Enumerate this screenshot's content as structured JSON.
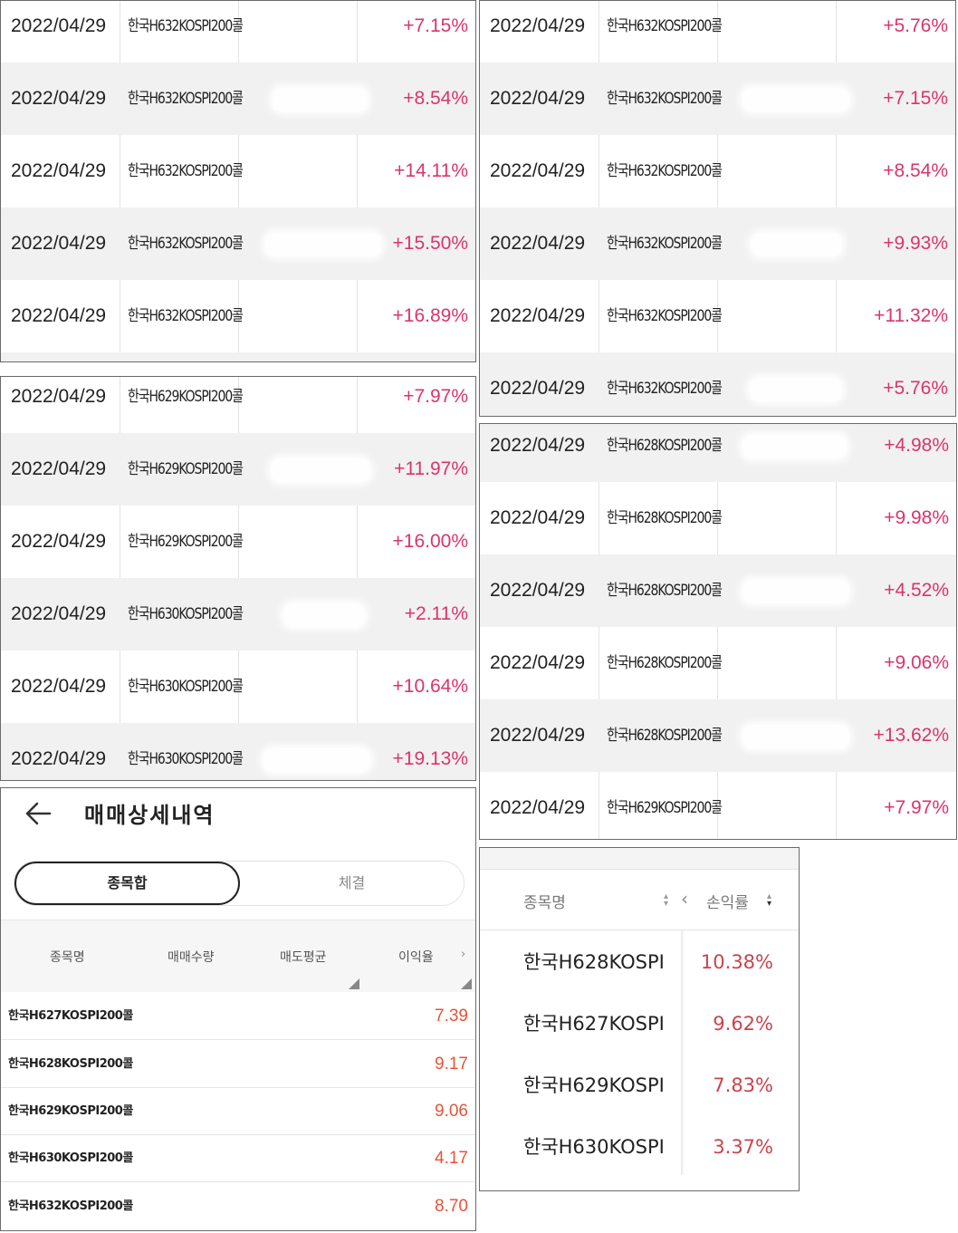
{
  "panel1": {
    "rows": [
      {
        "date": "2022/04/29",
        "name": "한국H632KOSPI200콜",
        "rate": "+7.15%"
      },
      {
        "date": "2022/04/29",
        "name": "한국H632KOSPI200콜",
        "rate": "+8.54%"
      },
      {
        "date": "2022/04/29",
        "name": "한국H632KOSPI200콜",
        "rate": "+14.11%"
      },
      {
        "date": "2022/04/29",
        "name": "한국H632KOSPI200콜",
        "rate": "+15.50%"
      },
      {
        "date": "2022/04/29",
        "name": "한국H632KOSPI200콜",
        "rate": "+16.89%"
      }
    ]
  },
  "panel2": {
    "rows": [
      {
        "date": "2022/04/29",
        "name": "한국H632KOSPI200콜",
        "rate": "+5.76%"
      },
      {
        "date": "2022/04/29",
        "name": "한국H632KOSPI200콜",
        "rate": "+7.15%"
      },
      {
        "date": "2022/04/29",
        "name": "한국H632KOSPI200콜",
        "rate": "+8.54%"
      },
      {
        "date": "2022/04/29",
        "name": "한국H632KOSPI200콜",
        "rate": "+9.93%"
      },
      {
        "date": "2022/04/29",
        "name": "한국H632KOSPI200콜",
        "rate": "+11.32%"
      },
      {
        "date": "2022/04/29",
        "name": "한국H632KOSPI200콜",
        "rate": "+5.76%"
      }
    ]
  },
  "panel3": {
    "rows": [
      {
        "date": "2022/04/29",
        "name": "한국H629KOSPI200콜",
        "rate": "+7.97%"
      },
      {
        "date": "2022/04/29",
        "name": "한국H629KOSPI200콜",
        "rate": "+11.97%"
      },
      {
        "date": "2022/04/29",
        "name": "한국H629KOSPI200콜",
        "rate": "+16.00%"
      },
      {
        "date": "2022/04/29",
        "name": "한국H630KOSPI200콜",
        "rate": "+2.11%"
      },
      {
        "date": "2022/04/29",
        "name": "한국H630KOSPI200콜",
        "rate": "+10.64%"
      },
      {
        "date": "2022/04/29",
        "name": "한국H630KOSPI200콜",
        "rate": "+19.13%"
      }
    ]
  },
  "panel4": {
    "rows": [
      {
        "date": "2022/04/29",
        "name": "한국H628KOSPI200콜",
        "rate": "+4.98%"
      },
      {
        "date": "2022/04/29",
        "name": "한국H628KOSPI200콜",
        "rate": "+9.98%"
      },
      {
        "date": "2022/04/29",
        "name": "한국H628KOSPI200콜",
        "rate": "+4.52%"
      },
      {
        "date": "2022/04/29",
        "name": "한국H628KOSPI200콜",
        "rate": "+9.06%"
      },
      {
        "date": "2022/04/29",
        "name": "한국H628KOSPI200콜",
        "rate": "+13.62%"
      },
      {
        "date": "2022/04/29",
        "name": "한국H629KOSPI200콜",
        "rate": "+7.97%"
      }
    ]
  },
  "panel5": {
    "title": "매매상세내역",
    "tabs": {
      "active": "종목합",
      "inactive": "체결"
    },
    "columns": [
      "종목명",
      "매매수량",
      "매도평균",
      "이익율"
    ],
    "rows": [
      {
        "name": "한국H627KOSPI200콜",
        "value": "7.39"
      },
      {
        "name": "한국H628KOSPI200콜",
        "value": "9.17"
      },
      {
        "name": "한국H629KOSPI200콜",
        "value": "9.06"
      },
      {
        "name": "한국H630KOSPI200콜",
        "value": "4.17"
      },
      {
        "name": "한국H632KOSPI200콜",
        "value": "8.70"
      }
    ]
  },
  "panel6": {
    "col_name": "종목명",
    "col_pnl": "손익률",
    "rows": [
      {
        "name": "한국H628KOSPI",
        "value": "10.38%"
      },
      {
        "name": "한국H627KOSPI",
        "value": "9.62%"
      },
      {
        "name": "한국H629KOSPI",
        "value": "7.83%"
      },
      {
        "name": "한국H630KOSPI",
        "value": "3.37%"
      }
    ]
  },
  "icons": {
    "back": "arrow-left-icon",
    "sort": "sort-updown-icon",
    "chevron_left": "chevron-left-icon",
    "chevron_right": "chevron-right-icon"
  },
  "colors": {
    "rate_text": "#d9356b",
    "profit_text": "#e8533a",
    "pnl_text": "#c9444c",
    "row_alt_bg": "#f1f1f1"
  }
}
